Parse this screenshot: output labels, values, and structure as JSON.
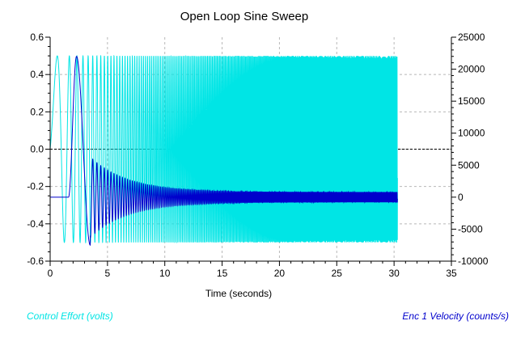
{
  "chart_data": {
    "type": "line",
    "title": "Open Loop Sine Sweep",
    "xlabel": "Time (seconds)",
    "xlim": [
      0,
      35
    ],
    "x_ticks": [
      0,
      5,
      10,
      15,
      20,
      25,
      30,
      35
    ],
    "y_left": {
      "label": "Control Effort (volts)",
      "color": "#00e5e5",
      "lim": [
        -0.6,
        0.6
      ],
      "ticks": [
        "0.6",
        "0.4",
        "0.2",
        "0.0",
        "-0.2",
        "-0.4",
        "-0.6"
      ]
    },
    "y_right": {
      "label": "Enc 1 Velocity (counts/s)",
      "color": "#0000cc",
      "lim": [
        -10000,
        25000
      ],
      "ticks": [
        "25000",
        "20000",
        "15000",
        "10000",
        "5000",
        "0",
        "-5000",
        "-10000"
      ]
    },
    "grid": true,
    "zero_line": 0.0,
    "series": [
      {
        "name": "Control Effort (volts)",
        "axis": "left",
        "color": "#00e5e5",
        "description_points": {
          "t_start": 0.0,
          "t_end": 30.3,
          "amplitude": 0.5,
          "offset": 0.0,
          "start_freq_hz": 0.2,
          "end_freq_hz": 20
        }
      },
      {
        "name": "Enc 1 Velocity (counts/s)",
        "axis": "right",
        "color": "#0000cc",
        "description_points": {
          "t_start": 0.0,
          "t_end": 30.3,
          "baseline": 0,
          "peak": 22000,
          "trough": -7500,
          "final_amplitude": 800
        }
      }
    ]
  }
}
